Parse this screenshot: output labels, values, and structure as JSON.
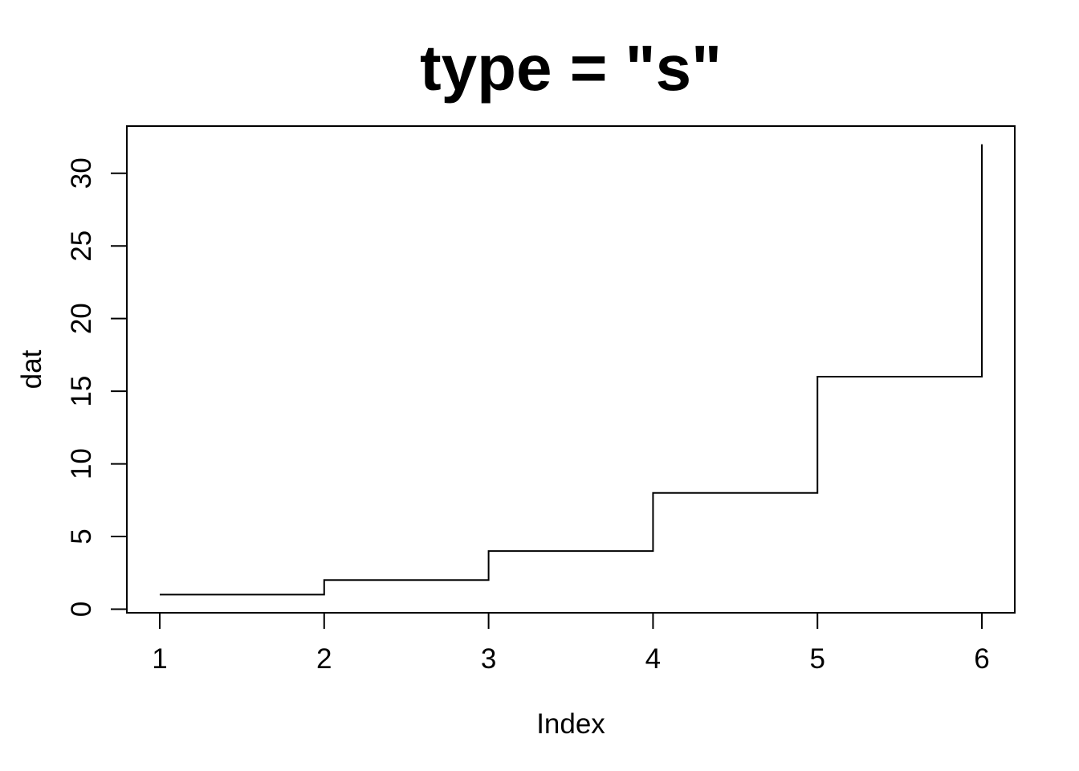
{
  "figure": {
    "background_color": "#ffffff",
    "foreground_color": "#000000"
  },
  "chart_data": {
    "type": "line",
    "subtype": "step",
    "step_style": "s",
    "title": "type = \"s\"",
    "xlabel": "Index",
    "ylabel": "dat",
    "x": [
      1,
      2,
      3,
      4,
      5,
      6
    ],
    "y": [
      1,
      2,
      4,
      8,
      16,
      32
    ],
    "x_ticks": [
      "1",
      "2",
      "3",
      "4",
      "5",
      "6"
    ],
    "x_tick_values": [
      1,
      2,
      3,
      4,
      5,
      6
    ],
    "y_ticks": [
      "0",
      "5",
      "10",
      "15",
      "20",
      "25",
      "30"
    ],
    "y_tick_values": [
      0,
      5,
      10,
      15,
      20,
      25,
      30
    ],
    "xlim": [
      0.8,
      6.2
    ],
    "ylim": [
      -0.25,
      33.25
    ],
    "grid": false,
    "legend_position": "none",
    "line_color": "#000000",
    "line_width": 2
  }
}
